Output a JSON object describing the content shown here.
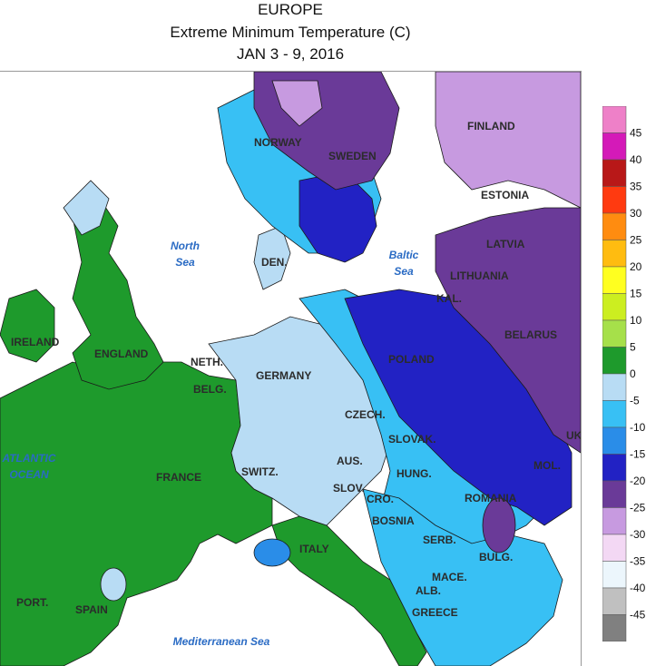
{
  "title": {
    "line1": "EUROPE",
    "line2": "Extreme Minimum Temperature (C)",
    "line3": "JAN 3 - 9, 2016"
  },
  "colors": {
    "ocean": "#ffffff",
    "band_0_5": "#1e9a2c",
    "band_5_10": "#a6e04a",
    "band_m5_0": "#b8dcf4",
    "band_m10_m5": "#38c0f4",
    "band_m15_m10": "#2a8de8",
    "band_m20_m15": "#2222c4",
    "band_m25_m20": "#6a3a98",
    "band_m30_m25": "#c79ae0",
    "band_m35_m30": "#f3d8f4"
  },
  "seas": [
    {
      "name": "north-sea-label",
      "lines": [
        "North",
        "Sea"
      ]
    },
    {
      "name": "baltic-sea-label",
      "lines": [
        "Baltic",
        "Sea"
      ]
    },
    {
      "name": "atlantic-ocean-label",
      "lines": [
        "ATLANTIC",
        "OCEAN"
      ]
    },
    {
      "name": "mediterranean-sea-label",
      "lines": [
        "Mediterranean Sea"
      ]
    }
  ],
  "countries": [
    "NORWAY",
    "SWEDEN",
    "FINLAND",
    "ESTONIA",
    "LATVIA",
    "LITHUANIA",
    "KAL.",
    "BELARUS",
    "UK",
    "DEN.",
    "IRELAND",
    "ENGLAND",
    "NETH.",
    "BELG.",
    "GERMANY",
    "POLAND",
    "CZECH.",
    "SLOVAK.",
    "AUS.",
    "HUNG.",
    "MOL.",
    "ROMANIA",
    "SWITZ.",
    "SLOV.",
    "CRO.",
    "BOSNIA",
    "SERB.",
    "BULG.",
    "MACE.",
    "ALB.",
    "GREECE",
    "FRANCE",
    "ITALY",
    "PORT.",
    "SPAIN"
  ],
  "legend": {
    "ticks": [
      "45",
      "40",
      "35",
      "30",
      "25",
      "20",
      "15",
      "10",
      "5",
      "0",
      "-5",
      "-10",
      "-15",
      "-20",
      "-25",
      "-30",
      "-35",
      "-40",
      "-45"
    ],
    "colors": [
      "#ee80c8",
      "#d41ab8",
      "#b81818",
      "#ff3a10",
      "#ff8c10",
      "#ffbc10",
      "#ffff20",
      "#ccee20",
      "#a6e04a",
      "#1e9a2c",
      "#b8dcf4",
      "#38c0f4",
      "#2a8de8",
      "#2222c4",
      "#6a3a98",
      "#c79ae0",
      "#f3d8f4",
      "#ecf6fc",
      "#c0c0c0",
      "#808080"
    ]
  }
}
